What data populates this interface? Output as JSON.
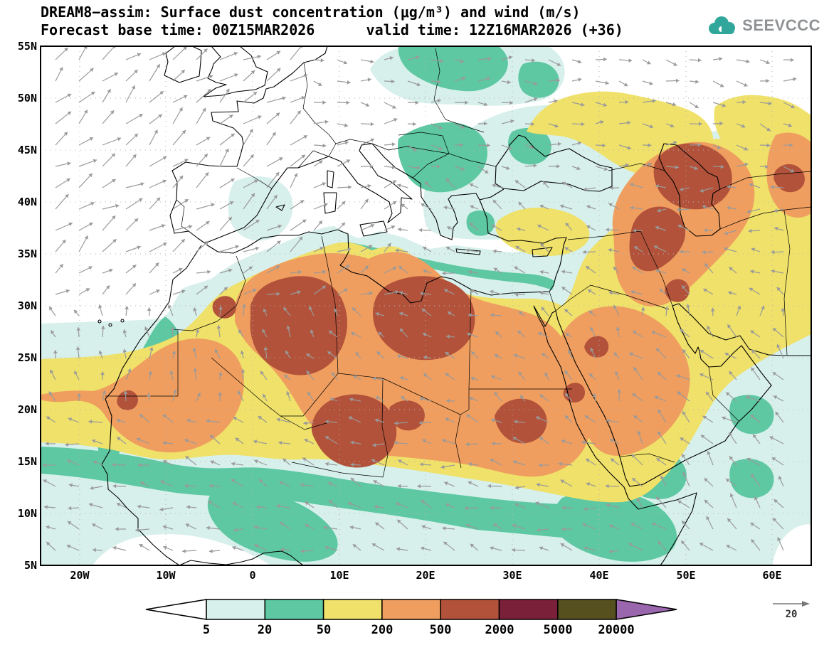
{
  "figure": {
    "title_line1": "DREAM8−assim: Surface dust concentration (μg/m³) and wind (m/s)",
    "title_line2": "Forecast base time: 00Z15MAR2026      valid time: 12Z16MAR2026 (+36)",
    "logo_text": "SEEVCCC"
  },
  "map": {
    "lat_labels": [
      "55N",
      "50N",
      "45N",
      "40N",
      "35N",
      "30N",
      "25N",
      "20N",
      "15N",
      "10N",
      "5N"
    ],
    "lon_labels": [
      "20W",
      "10W",
      "0",
      "10E",
      "20E",
      "30E",
      "40E",
      "50E",
      "60E"
    ]
  },
  "colorbar": {
    "tick_labels": [
      "5",
      "20",
      "50",
      "200",
      "500",
      "2000",
      "5000",
      "20000"
    ],
    "segment_colors": [
      "#ffffff",
      "#d7f0eb",
      "#5dc8a2",
      "#efe169",
      "#ef9e5f",
      "#b2523a",
      "#7a2038",
      "#55501e",
      "#9a66ad"
    ],
    "wind_reference_label": "20"
  },
  "chart_data": {
    "type": "heatmap",
    "title": "DREAM8−assim: Surface dust concentration (μg/m³) and wind (m/s)",
    "subtitle": "Forecast base time: 00Z15MAR2026  valid time: 12Z16MAR2026 (+36)",
    "model": "DREAM8−assim",
    "variable": "Surface dust concentration",
    "units": "μg/m³",
    "wind_units": "m/s",
    "forecast_base_time": "00Z15MAR2026",
    "valid_time": "12Z16MAR2026",
    "forecast_hour": "+36",
    "lon_range_deg": [
      -25,
      65
    ],
    "lat_range_deg": [
      5,
      55
    ],
    "x_tick_labels": [
      "20W",
      "10W",
      "0",
      "10E",
      "20E",
      "30E",
      "40E",
      "50E",
      "60E"
    ],
    "y_tick_labels": [
      "5N",
      "10N",
      "15N",
      "20N",
      "25N",
      "30N",
      "35N",
      "40N",
      "45N",
      "50N",
      "55N"
    ],
    "contour_levels": [
      5,
      20,
      50,
      200,
      500,
      2000,
      5000,
      20000
    ],
    "level_colors": [
      "#ffffff",
      "#d7f0eb",
      "#5dc8a2",
      "#efe169",
      "#ef9e5f",
      "#b2523a",
      "#7a2038",
      "#55501e",
      "#9a66ad"
    ],
    "wind_reference_speed": 20,
    "grid": "dotted, 10 deg lon x 5 deg lat",
    "high_concentration_regions": [
      {
        "region": "northwest Algeria / central Sahara",
        "approx_level": "500–2000"
      },
      {
        "region": "central Libya / western Egypt",
        "approx_level": "500–2000"
      },
      {
        "region": "Niger / Chad (Bodele)",
        "approx_level": "500–2000"
      },
      {
        "region": "Sudan",
        "approx_level": "500–2000"
      },
      {
        "region": "Mesopotamia / Zagros (Iraq–Iran)",
        "approx_level": "500–2000"
      },
      {
        "region": "Caucasus / west Caspian",
        "approx_level": "500–2000"
      }
    ],
    "low_concentration_regions": [
      {
        "region": "NE Atlantic / western Europe",
        "approx_level": "<5"
      },
      {
        "region": "Black Sea / Balkans / Baltic",
        "approx_level": "5–50"
      },
      {
        "region": "Sahel band / Gulf of Guinea / Horn of Africa",
        "approx_level": "20–50"
      }
    ]
  }
}
